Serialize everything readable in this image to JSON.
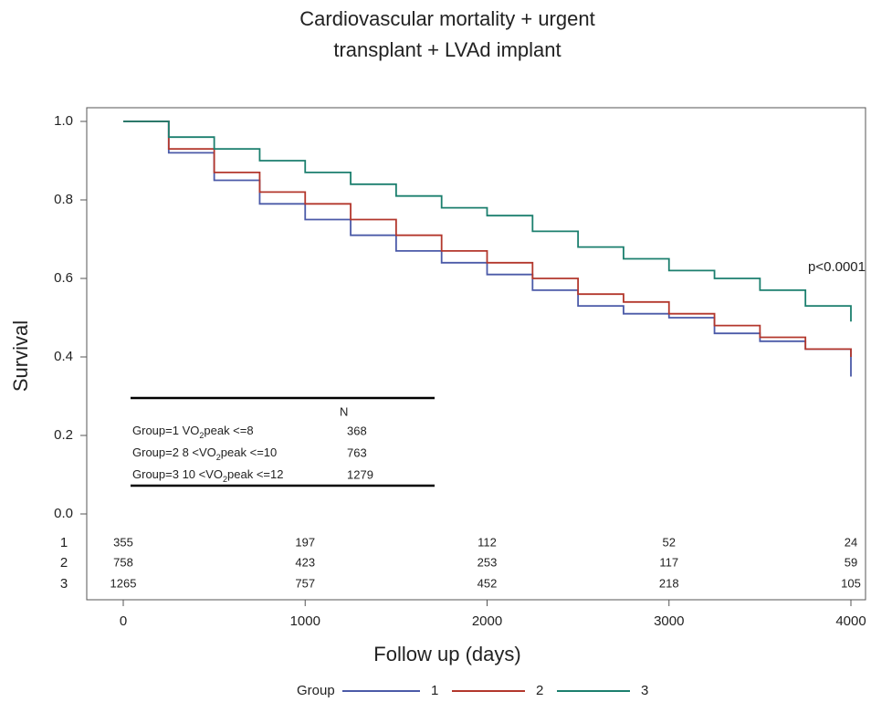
{
  "chart_data": {
    "type": "line",
    "title": [
      "Cardiovascular mortality + urgent",
      "transplant + LVAd implant"
    ],
    "x_label": "Follow up (days)",
    "y_label": "Survival",
    "xlim": [
      0,
      4000
    ],
    "ylim": [
      0,
      1
    ],
    "xticks": [
      0,
      1000,
      2000,
      3000,
      4000
    ],
    "yticks": [
      {
        "value": 0,
        "label": "0.0"
      },
      {
        "value": 0.2,
        "label": "0.2"
      },
      {
        "value": 0.4,
        "label": "0.4"
      },
      {
        "value": 0.6,
        "label": "0.6"
      },
      {
        "value": 0.8,
        "label": "0.8"
      },
      {
        "value": 1,
        "label": "1.0"
      }
    ],
    "annotation": "p<0.0001",
    "x": [
      0,
      250,
      500,
      750,
      1000,
      1250,
      1500,
      1750,
      2000,
      2250,
      2500,
      2750,
      3000,
      3250,
      3500,
      3750,
      4000
    ],
    "series": [
      {
        "name": "1",
        "color": "#4b5aa8",
        "values": [
          1.0,
          0.92,
          0.85,
          0.79,
          0.75,
          0.71,
          0.67,
          0.64,
          0.61,
          0.57,
          0.53,
          0.51,
          0.5,
          0.46,
          0.44,
          0.42,
          0.35
        ]
      },
      {
        "name": "2",
        "color": "#b3372c",
        "values": [
          1.0,
          0.93,
          0.87,
          0.82,
          0.79,
          0.75,
          0.71,
          0.67,
          0.64,
          0.6,
          0.56,
          0.54,
          0.51,
          0.48,
          0.45,
          0.42,
          0.4
        ]
      },
      {
        "name": "3",
        "color": "#1b7f6e",
        "values": [
          1.0,
          0.96,
          0.93,
          0.9,
          0.87,
          0.84,
          0.81,
          0.78,
          0.76,
          0.72,
          0.68,
          0.65,
          0.62,
          0.6,
          0.57,
          0.53,
          0.49
        ]
      }
    ],
    "at_risk": [
      {
        "group": "1",
        "counts": [
          355,
          197,
          112,
          52,
          24
        ]
      },
      {
        "group": "2",
        "counts": [
          758,
          423,
          253,
          117,
          59
        ]
      },
      {
        "group": "3",
        "counts": [
          1265,
          757,
          452,
          218,
          105
        ]
      }
    ],
    "inset_table": {
      "header": "N",
      "rows": [
        {
          "label_parts": [
            "Group=1  VO",
            "2",
            "peak <=8"
          ],
          "n": 368
        },
        {
          "label_parts": [
            "Group=2  8 <VO",
            "2",
            "peak <=10"
          ],
          "n": 763
        },
        {
          "label_parts": [
            "Group=3  10 <VO",
            "2",
            "peak <=12"
          ],
          "n": 1279
        }
      ]
    },
    "legend_title": "Group"
  }
}
